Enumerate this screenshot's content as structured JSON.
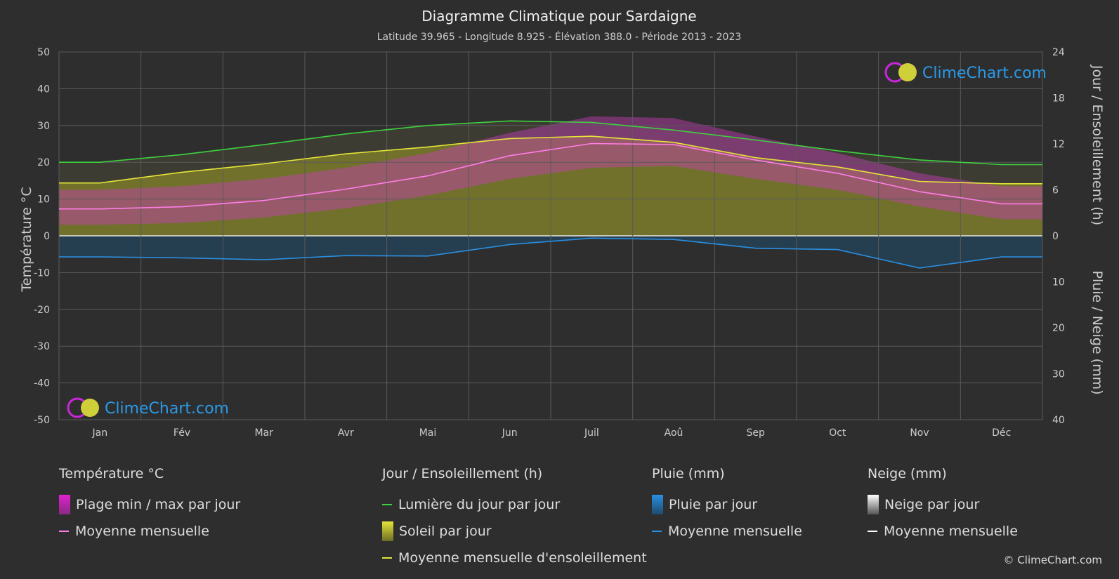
{
  "title": "Diagramme Climatique pour Sardaigne",
  "subtitle": "Latitude 39.965 - Longitude 8.925 - Élévation 388.0 - Période 2013 - 2023",
  "logo_text": "ClimeChart.com",
  "copyright": "© ClimeChart.com",
  "colors": {
    "daylight": "#3fd13f",
    "sunshine_mean": "#e5e53a",
    "temp_mean": "#ff7ee6",
    "temp_range": "#e020d0",
    "rain": "#2a8fe0",
    "snow": "#ffffff",
    "sunshine_fill": "#8c8c2a"
  },
  "legend": {
    "temp": {
      "title": "Température °C",
      "range": "Plage min / max par jour",
      "mean": "Moyenne mensuelle"
    },
    "sun": {
      "title": "Jour / Ensoleillement (h)",
      "daylight": "Lumière du jour par jour",
      "sunshine": "Soleil par jour",
      "sunshine_mean": "Moyenne mensuelle d'ensoleillement"
    },
    "rain": {
      "title": "Pluie (mm)",
      "daily": "Pluie par jour",
      "mean": "Moyenne mensuelle"
    },
    "snow": {
      "title": "Neige (mm)",
      "daily": "Neige par jour",
      "mean": "Moyenne mensuelle"
    }
  },
  "chart_data": {
    "type": "line",
    "categories": [
      "Jan",
      "Fév",
      "Mar",
      "Avr",
      "Mai",
      "Jun",
      "Juil",
      "Aoû",
      "Sep",
      "Oct",
      "Nov",
      "Déc"
    ],
    "y_left": {
      "label": "Température °C",
      "ticks": [
        50,
        40,
        30,
        20,
        10,
        0,
        -10,
        -20,
        -30,
        -40,
        -50
      ],
      "range": [
        -50,
        50
      ]
    },
    "y_right_top": {
      "label": "Jour / Ensoleillement (h)",
      "ticks": [
        24,
        18,
        12,
        6,
        0
      ],
      "range": [
        0,
        24
      ]
    },
    "y_right_bottom": {
      "label": "Pluie / Neige (mm)",
      "ticks": [
        0,
        10,
        20,
        30,
        40
      ],
      "range": [
        0,
        40
      ]
    },
    "series": [
      {
        "name": "Lumière du jour par jour",
        "unit": "h",
        "values": [
          9.6,
          10.6,
          11.9,
          13.3,
          14.4,
          15.0,
          14.8,
          13.8,
          12.5,
          11.1,
          9.9,
          9.3
        ]
      },
      {
        "name": "Moyenne mensuelle d'ensoleillement",
        "unit": "h",
        "values": [
          6.9,
          8.3,
          9.4,
          10.7,
          11.6,
          12.7,
          13.0,
          12.2,
          10.2,
          9.0,
          7.1,
          6.8
        ]
      },
      {
        "name": "Température moyenne mensuelle",
        "unit": "°C",
        "values": [
          7.3,
          7.9,
          9.6,
          12.7,
          16.3,
          21.8,
          25.1,
          24.8,
          20.6,
          17.0,
          12.0,
          8.7
        ]
      },
      {
        "name": "Pluie moyenne mensuelle",
        "unit": "mm",
        "values": [
          4.6,
          4.8,
          5.2,
          4.3,
          4.4,
          1.9,
          0.5,
          0.8,
          2.7,
          3.0,
          7.0,
          4.6
        ]
      },
      {
        "name": "Température max moyenne",
        "unit": "°C",
        "values": [
          12.5,
          13.5,
          15.5,
          18.5,
          22.5,
          28.0,
          32.5,
          32.0,
          27.0,
          22.5,
          17.0,
          13.5
        ]
      },
      {
        "name": "Température min moyenne",
        "unit": "°C",
        "values": [
          3.0,
          3.5,
          5.0,
          7.5,
          11.0,
          15.5,
          18.5,
          19.0,
          15.5,
          12.5,
          8.0,
          4.5
        ]
      }
    ],
    "grid": true
  }
}
